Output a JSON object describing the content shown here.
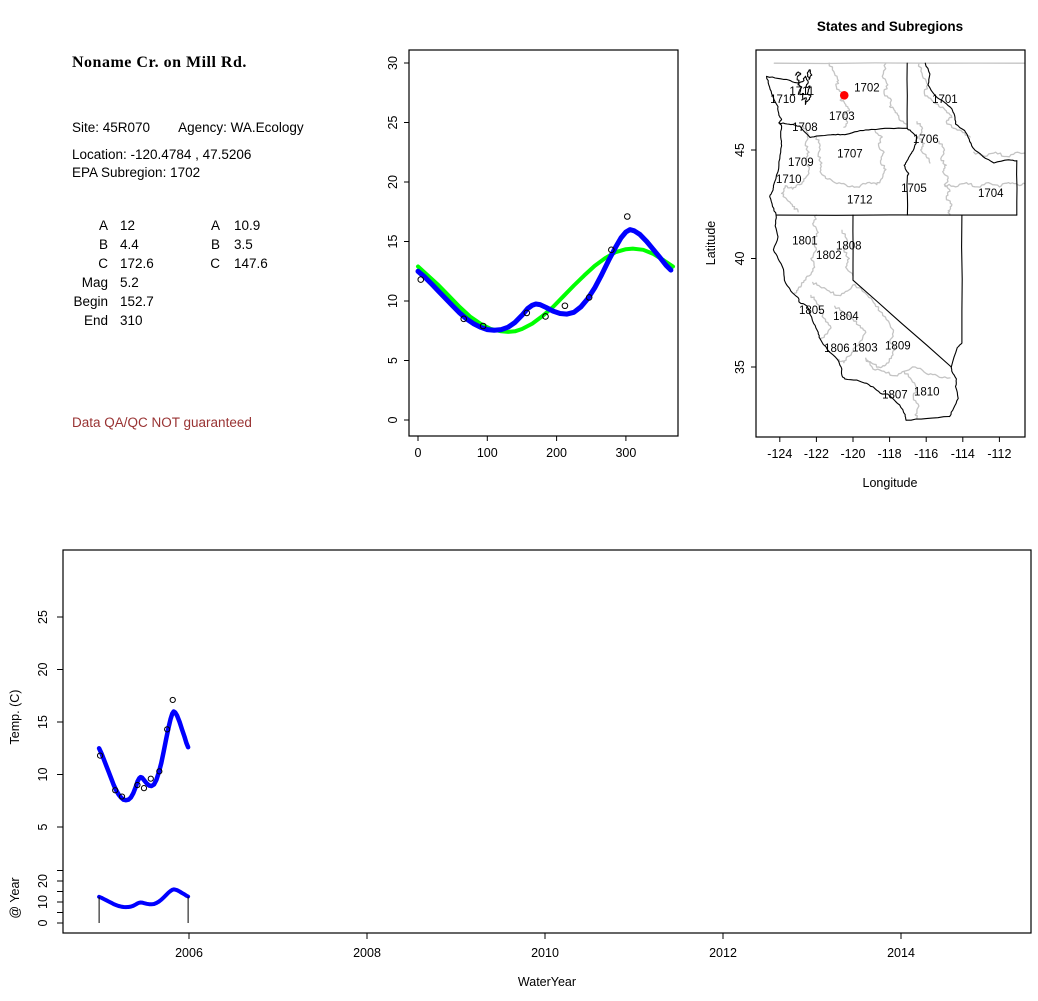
{
  "info_panel": {
    "title": "Noname Cr. on Mill Rd.",
    "site_text": "Site: 45R070",
    "agency_text": "Agency: WA.Ecology",
    "location_text": "Location: -120.4784 , 47.5206",
    "epa_text": "EPA Subregion: 1702",
    "params": {
      "rows": [
        {
          "label": "A",
          "col1": "12",
          "label2": "A",
          "col2": "10.9"
        },
        {
          "label": "B",
          "col1": "4.4",
          "label2": "B",
          "col2": "3.5"
        },
        {
          "label": "C",
          "col1": "172.6",
          "label2": "C",
          "col2": "147.6"
        },
        {
          "label": "Mag",
          "col1": "5.2",
          "label2": "",
          "col2": ""
        },
        {
          "label": "Begin",
          "col1": "152.7",
          "label2": "",
          "col2": ""
        },
        {
          "label": "End",
          "col1": "310",
          "label2": "",
          "col2": ""
        }
      ]
    },
    "qa_notice": "Data QA/QC NOT guaranteed",
    "qa_color": "#993333"
  },
  "chart_data": [
    {
      "id": "seasonal_fit",
      "type": "scatter",
      "title": "",
      "xlabel": "",
      "ylabel": "",
      "xlim": [
        -13,
        375
      ],
      "ylim": [
        -1.3,
        31.1
      ],
      "x_ticks": [
        0,
        100,
        200,
        300
      ],
      "y_ticks": [
        0,
        5,
        10,
        15,
        20,
        25,
        30
      ],
      "grid": false,
      "point_color": "#000000",
      "points": [
        [
          4,
          11.8
        ],
        [
          66,
          8.5
        ],
        [
          94,
          7.9
        ],
        [
          157,
          9.0
        ],
        [
          184,
          8.7
        ],
        [
          212,
          9.6
        ],
        [
          247,
          10.3
        ],
        [
          279,
          14.3
        ],
        [
          302,
          17.1
        ]
      ],
      "series": [
        {
          "name": "fitted seasonal curve",
          "color": "#0000FF",
          "width": 5,
          "points": [
            [
              0,
              12.5
            ],
            [
              10,
              12.0
            ],
            [
              20,
              11.4
            ],
            [
              30,
              10.8
            ],
            [
              40,
              10.2
            ],
            [
              50,
              9.6
            ],
            [
              60,
              9.0
            ],
            [
              70,
              8.5
            ],
            [
              80,
              8.1
            ],
            [
              90,
              7.8
            ],
            [
              100,
              7.6
            ],
            [
              110,
              7.55
            ],
            [
              120,
              7.6
            ],
            [
              130,
              7.8
            ],
            [
              140,
              8.2
            ],
            [
              150,
              8.8
            ],
            [
              158,
              9.35
            ],
            [
              165,
              9.65
            ],
            [
              170,
              9.75
            ],
            [
              176,
              9.7
            ],
            [
              185,
              9.45
            ],
            [
              195,
              9.15
            ],
            [
              205,
              8.95
            ],
            [
              215,
              8.9
            ],
            [
              225,
              9.05
            ],
            [
              235,
              9.5
            ],
            [
              245,
              10.2
            ],
            [
              255,
              11.1
            ],
            [
              265,
              12.2
            ],
            [
              275,
              13.4
            ],
            [
              285,
              14.5
            ],
            [
              293,
              15.3
            ],
            [
              300,
              15.8
            ],
            [
              306,
              16.0
            ],
            [
              312,
              15.9
            ],
            [
              320,
              15.6
            ],
            [
              330,
              15.0
            ],
            [
              340,
              14.3
            ],
            [
              350,
              13.6
            ],
            [
              358,
              13.0
            ],
            [
              365,
              12.6
            ]
          ]
        },
        {
          "name": "sine fit curve (A 10.9, B 3.5, C 147.6)",
          "color": "#00FF00",
          "width": 4,
          "points": [
            [
              0,
              12.9
            ],
            [
              15,
              12.1
            ],
            [
              30,
              11.3
            ],
            [
              45,
              10.4
            ],
            [
              60,
              9.5
            ],
            [
              75,
              8.7
            ],
            [
              90,
              8.1
            ],
            [
              105,
              7.65
            ],
            [
              120,
              7.45
            ],
            [
              130,
              7.4
            ],
            [
              140,
              7.45
            ],
            [
              150,
              7.65
            ],
            [
              165,
              8.1
            ],
            [
              180,
              8.75
            ],
            [
              195,
              9.5
            ],
            [
              210,
              10.4
            ],
            [
              225,
              11.3
            ],
            [
              240,
              12.15
            ],
            [
              255,
              12.95
            ],
            [
              270,
              13.6
            ],
            [
              285,
              14.1
            ],
            [
              300,
              14.35
            ],
            [
              310,
              14.4
            ],
            [
              325,
              14.3
            ],
            [
              340,
              13.95
            ],
            [
              355,
              13.4
            ],
            [
              368,
              12.9
            ]
          ]
        }
      ]
    },
    {
      "id": "subregion_map",
      "type": "map",
      "title": "States and Subregions",
      "xlabel": "Longitude",
      "ylabel": "Latitude",
      "x_ticks": [
        -124,
        -122,
        -120,
        -118,
        -116,
        -114,
        -112
      ],
      "y_ticks": [
        35,
        40,
        45
      ],
      "xlim": [
        -125.2,
        -110.5
      ],
      "ylim": [
        31.8,
        49.6
      ],
      "boundary_color_state": "#000000",
      "boundary_color_subregion": "#C4C4C4",
      "site_marker": {
        "lon": -120.4784,
        "lat": 47.5206,
        "color": "#FF0000"
      },
      "region_labels": [
        {
          "text": "1711",
          "lon": -122.8,
          "lat": 47.71
        },
        {
          "text": "1702",
          "lon": -119.24,
          "lat": 47.89
        },
        {
          "text": "1701",
          "lon": -114.98,
          "lat": 47.34
        },
        {
          "text": "1710",
          "lon": -123.83,
          "lat": 47.34
        },
        {
          "text": "1703",
          "lon": -120.61,
          "lat": 46.56
        },
        {
          "text": "1708",
          "lon": -122.63,
          "lat": 46.05
        },
        {
          "text": "1706",
          "lon": -116.02,
          "lat": 45.5
        },
        {
          "text": "1707",
          "lon": -120.17,
          "lat": 44.85
        },
        {
          "text": "1709",
          "lon": -122.85,
          "lat": 44.44
        },
        {
          "text": "1710",
          "lon": -123.51,
          "lat": 43.66
        },
        {
          "text": "1705",
          "lon": -116.67,
          "lat": 43.24
        },
        {
          "text": "1704",
          "lon": -112.47,
          "lat": 43.01
        },
        {
          "text": "1712",
          "lon": -119.63,
          "lat": 42.73
        },
        {
          "text": "1801",
          "lon": -122.63,
          "lat": 40.84
        },
        {
          "text": "1808",
          "lon": -120.23,
          "lat": 40.61
        },
        {
          "text": "1802",
          "lon": -121.32,
          "lat": 40.15
        },
        {
          "text": "1805",
          "lon": -122.25,
          "lat": 37.62
        },
        {
          "text": "1804",
          "lon": -120.39,
          "lat": 37.34
        },
        {
          "text": "1806",
          "lon": -120.88,
          "lat": 35.87
        },
        {
          "text": "1803",
          "lon": -119.35,
          "lat": 35.91
        },
        {
          "text": "1809",
          "lon": -117.55,
          "lat": 36.0
        },
        {
          "text": "1807",
          "lon": -117.71,
          "lat": 33.74
        },
        {
          "text": "1810",
          "lon": -115.97,
          "lat": 33.88
        }
      ]
    },
    {
      "id": "temp_timeseries",
      "type": "line",
      "xlabel": "WaterYear",
      "ylabel_main": "Temp. (C)",
      "ylabel_sub": "@ Year",
      "x_ticks": [
        2006,
        2008,
        2010,
        2012,
        2014
      ],
      "xlim": [
        2004.58,
        2015.45
      ],
      "y_ticks_main": [
        5,
        10,
        15,
        20,
        25
      ],
      "y_ticks_sub": [
        0,
        10,
        20
      ],
      "y_minor_ticks_sub": [
        0,
        5,
        10,
        15,
        20,
        25
      ],
      "start_year": 2004.99,
      "line_color": "#0000FF",
      "begin_end_marker_years": [
        2004.99,
        2005.99
      ],
      "note": "curve and points are the same daily series as seasonal_fit, plotted vs water year"
    }
  ]
}
